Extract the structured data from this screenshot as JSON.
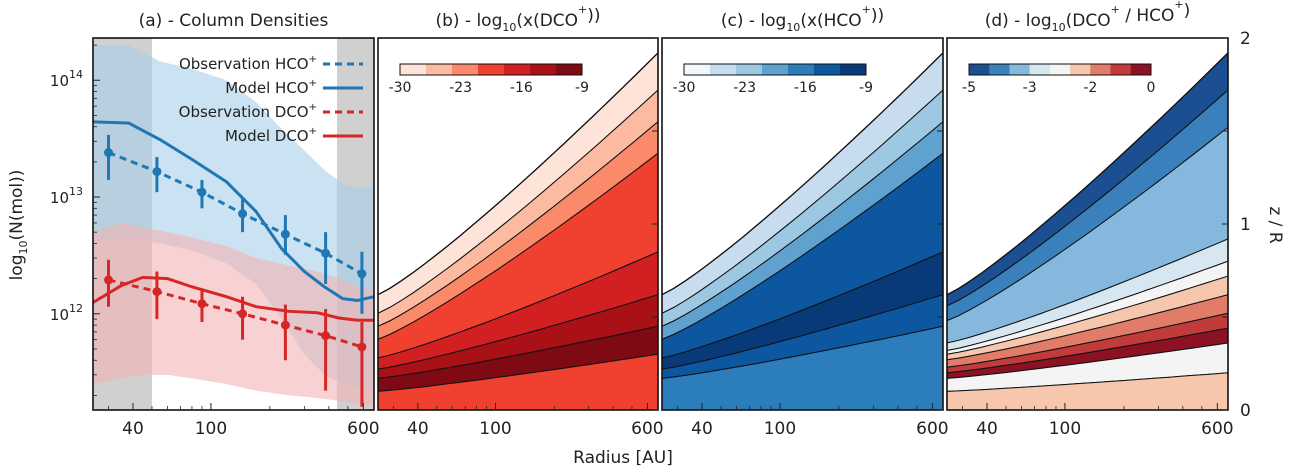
{
  "figure": {
    "xlabel": "Radius [AU]",
    "right_ylabel": "z / R",
    "right_ticks": [
      "0",
      "1",
      "2"
    ]
  },
  "colors": {
    "hco": "#1f77b4",
    "dco": "#d62728",
    "hco_band": "#a6cfe8",
    "dco_band": "#f4b4b4",
    "shade": "#d0d0d0",
    "reds": [
      "#fde3d8",
      "#fcbba1",
      "#fb8a6a",
      "#f0402f",
      "#d21f22",
      "#aa1117",
      "#7f0a13"
    ],
    "blues": [
      "#f2f7fc",
      "#c8dcf0",
      "#9cc8e2",
      "#5fa2d0",
      "#2c7dbb",
      "#0d57a1",
      "#083a7a"
    ],
    "ratio": [
      "#1c4f91",
      "#3a80bd",
      "#85b8dc",
      "#d7e7f2",
      "#f4f4f4",
      "#f6c7ad",
      "#e07c67",
      "#c13b3b",
      "#8b1123"
    ]
  },
  "chart_data": [
    {
      "type": "line",
      "title": "(a) - Column Densities",
      "ylabel": "log10(N(mol))",
      "ylabel_main": "log",
      "ylabel_sub": "10",
      "ylabel_rest": "(N(mol))",
      "xscale": "log",
      "yscale": "log",
      "xlim": [
        25,
        680
      ],
      "ylim": [
        150000000000.0,
        230000000000000.0
      ],
      "xticks": [
        40,
        100,
        600
      ],
      "xtick_labels": [
        "40",
        "100",
        "600"
      ],
      "yticks": [
        1000000000000.0,
        10000000000000.0,
        100000000000000.0
      ],
      "ytick_base": "10",
      "ytick_exps": [
        "12",
        "13",
        "14"
      ],
      "shaded_regions": [
        [
          25,
          50
        ],
        [
          440,
          680
        ]
      ],
      "legend": [
        {
          "base": "Observation HCO",
          "sup": "+",
          "color": "hco",
          "style": "dashed"
        },
        {
          "base": "Model HCO",
          "sup": "+",
          "color": "hco",
          "style": "solid"
        },
        {
          "base": "Observation DCO",
          "sup": "+",
          "color": "dco",
          "style": "dashed"
        },
        {
          "base": "Model DCO",
          "sup": "+",
          "color": "dco",
          "style": "solid"
        }
      ],
      "series": [
        {
          "name": "Model HCO+",
          "kind": "model",
          "color": "hco",
          "x": [
            25,
            38,
            55,
            80,
            120,
            170,
            230,
            300,
            380,
            470,
            560,
            680
          ],
          "y": [
            44000000000000.0,
            43000000000000.0,
            31000000000000.0,
            21000000000000.0,
            13500000000000.0,
            7500000000000.0,
            3600000000000.0,
            2300000000000.0,
            1700000000000.0,
            1350000000000.0,
            1300000000000.0,
            1400000000000.0
          ],
          "band_upper": [
            200000000000000.0,
            200000000000000.0,
            145000000000000.0,
            125000000000000.0,
            100000000000000.0,
            65000000000000.0,
            38000000000000.0,
            25000000000000.0,
            17000000000000.0,
            13000000000000.0,
            12000000000000.0,
            12000000000000.0
          ],
          "band_lower": [
            4000000000000.0,
            4500000000000.0,
            4000000000000.0,
            3500000000000.0,
            2700000000000.0,
            1800000000000.0,
            900000000000.0,
            450000000000.0,
            300000000000.0,
            250000000000.0,
            230000000000.0,
            230000000000.0
          ]
        },
        {
          "name": "Model DCO+",
          "kind": "model",
          "color": "dco",
          "x": [
            25,
            35,
            45,
            60,
            80,
            120,
            170,
            250,
            350,
            450,
            560,
            680
          ],
          "y": [
            1250000000000.0,
            1750000000000.0,
            2050000000000.0,
            2000000000000.0,
            1700000000000.0,
            1400000000000.0,
            1150000000000.0,
            1050000000000.0,
            1020000000000.0,
            920000000000.0,
            880000000000.0,
            880000000000.0
          ],
          "band_upper": [
            5000000000000.0,
            6000000000000.0,
            5500000000000.0,
            5000000000000.0,
            4500000000000.0,
            3800000000000.0,
            3000000000000.0,
            2600000000000.0,
            2300000000000.0,
            2000000000000.0,
            1700000000000.0,
            1600000000000.0
          ],
          "band_lower": [
            250000000000.0,
            280000000000.0,
            300000000000.0,
            300000000000.0,
            280000000000.0,
            250000000000.0,
            220000000000.0,
            200000000000.0,
            190000000000.0,
            180000000000.0,
            170000000000.0,
            160000000000.0
          ]
        },
        {
          "name": "Observation HCO+",
          "kind": "observation",
          "color": "hco",
          "x": [
            30,
            53,
            90,
            145,
            240,
            385,
            590
          ],
          "y": [
            24000000000000.0,
            16500000000000.0,
            11000000000000.0,
            7200000000000.0,
            4800000000000.0,
            3300000000000.0,
            2200000000000.0
          ],
          "yerr_low": [
            14000000000000.0,
            11000000000000.0,
            8000000000000.0,
            5000000000000.0,
            3200000000000.0,
            1800000000000.0,
            1000000000000.0
          ],
          "yerr_high": [
            34000000000000.0,
            22000000000000.0,
            14000000000000.0,
            10000000000000.0,
            7000000000000.0,
            5000000000000.0,
            3400000000000.0
          ]
        },
        {
          "name": "Observation DCO+",
          "kind": "observation",
          "color": "dco",
          "x": [
            30,
            53,
            90,
            145,
            240,
            385,
            590
          ],
          "y": [
            1950000000000.0,
            1550000000000.0,
            1220000000000.0,
            1000000000000.0,
            800000000000.0,
            650000000000.0,
            520000000000.0
          ],
          "yerr_low": [
            1150000000000.0,
            900000000000.0,
            850000000000.0,
            600000000000.0,
            400000000000.0,
            220000000000.0,
            160000000000.0
          ],
          "yerr_high": [
            2900000000000.0,
            2300000000000.0,
            1600000000000.0,
            1400000000000.0,
            1200000000000.0,
            1100000000000.0,
            850000000000.0
          ]
        }
      ]
    },
    {
      "type": "heatmap",
      "title_parts": [
        "(b) - log",
        "10",
        "(x(DCO",
        "+",
        "))"
      ],
      "palette": "reds",
      "colorbar_ticks": [
        "-30",
        "-23",
        "-16",
        "-9"
      ],
      "xscale": "log",
      "xlim": [
        25,
        680
      ],
      "ylim": [
        0,
        2
      ],
      "xticks": [
        40,
        100,
        600
      ],
      "xtick_labels": [
        "40",
        "100",
        "600"
      ],
      "disk_surface_zR": [
        0.62,
        1.92
      ],
      "bands": [
        {
          "level": 0,
          "upper": [
            0.62,
            1.92
          ],
          "lower": [
            0.52,
            1.72
          ]
        },
        {
          "level": 1,
          "upper": [
            0.52,
            1.72
          ],
          "lower": [
            0.45,
            1.55
          ]
        },
        {
          "level": 2,
          "upper": [
            0.45,
            1.55
          ],
          "lower": [
            0.38,
            1.38
          ]
        },
        {
          "level": 3,
          "upper": [
            0.38,
            1.38
          ],
          "lower": [
            0.28,
            0.85
          ]
        },
        {
          "level": 4,
          "upper": [
            0.28,
            0.85
          ],
          "lower": [
            0.22,
            0.62
          ]
        },
        {
          "level": 5,
          "upper": [
            0.22,
            0.62
          ],
          "lower": [
            0.17,
            0.45
          ]
        },
        {
          "level": 6,
          "upper": [
            0.17,
            0.45
          ],
          "lower": [
            0.1,
            0.3
          ]
        },
        {
          "level": 3,
          "upper": [
            0.1,
            0.3
          ],
          "lower": [
            0.0,
            0.0
          ]
        }
      ]
    },
    {
      "type": "heatmap",
      "title_parts": [
        "(c) - log",
        "10",
        "(x(HCO",
        "+",
        "))"
      ],
      "palette": "blues",
      "colorbar_ticks": [
        "-30",
        "-23",
        "-16",
        "-9"
      ],
      "xscale": "log",
      "xlim": [
        25,
        680
      ],
      "ylim": [
        0,
        2
      ],
      "xticks": [
        40,
        100,
        600
      ],
      "xtick_labels": [
        "40",
        "100",
        "600"
      ],
      "disk_surface_zR": [
        0.62,
        1.92
      ],
      "bands": [
        {
          "level": 1,
          "upper": [
            0.62,
            1.92
          ],
          "lower": [
            0.52,
            1.72
          ]
        },
        {
          "level": 2,
          "upper": [
            0.52,
            1.72
          ],
          "lower": [
            0.45,
            1.55
          ]
        },
        {
          "level": 3,
          "upper": [
            0.45,
            1.55
          ],
          "lower": [
            0.38,
            1.38
          ]
        },
        {
          "level": 5,
          "upper": [
            0.38,
            1.38
          ],
          "lower": [
            0.28,
            0.85
          ]
        },
        {
          "level": 6,
          "upper": [
            0.28,
            0.85
          ],
          "lower": [
            0.22,
            0.62
          ]
        },
        {
          "level": 5,
          "upper": [
            0.22,
            0.62
          ],
          "lower": [
            0.17,
            0.45
          ]
        },
        {
          "level": 4,
          "upper": [
            0.17,
            0.45
          ],
          "lower": [
            0.0,
            0.0
          ]
        }
      ]
    },
    {
      "type": "heatmap",
      "title_parts": [
        "(d) - log",
        "10",
        "(DCO",
        "+",
        " / HCO",
        "+",
        ")"
      ],
      "palette": "ratio",
      "colorbar_ticks": [
        "-5",
        "-3",
        "-2",
        "0"
      ],
      "xscale": "log",
      "xlim": [
        25,
        680
      ],
      "ylim": [
        0,
        2
      ],
      "xticks": [
        40,
        100,
        600
      ],
      "xtick_labels": [
        "40",
        "100",
        "600"
      ],
      "disk_surface_zR": [
        0.62,
        1.92
      ],
      "bands": [
        {
          "level": 0,
          "upper": [
            0.62,
            1.92
          ],
          "lower": [
            0.56,
            1.72
          ]
        },
        {
          "level": 1,
          "upper": [
            0.56,
            1.72
          ],
          "lower": [
            0.48,
            1.52
          ]
        },
        {
          "level": 2,
          "upper": [
            0.48,
            1.52
          ],
          "lower": [
            0.36,
            0.92
          ]
        },
        {
          "level": 3,
          "upper": [
            0.36,
            0.92
          ],
          "lower": [
            0.32,
            0.8
          ]
        },
        {
          "level": 4,
          "upper": [
            0.32,
            0.8
          ],
          "lower": [
            0.3,
            0.72
          ]
        },
        {
          "level": 5,
          "upper": [
            0.3,
            0.72
          ],
          "lower": [
            0.27,
            0.62
          ]
        },
        {
          "level": 6,
          "upper": [
            0.27,
            0.62
          ],
          "lower": [
            0.23,
            0.52
          ]
        },
        {
          "level": 7,
          "upper": [
            0.23,
            0.52
          ],
          "lower": [
            0.2,
            0.44
          ]
        },
        {
          "level": 8,
          "upper": [
            0.2,
            0.44
          ],
          "lower": [
            0.17,
            0.36
          ]
        },
        {
          "level": 4,
          "upper": [
            0.17,
            0.36
          ],
          "lower": [
            0.1,
            0.2
          ]
        },
        {
          "level": 5,
          "upper": [
            0.1,
            0.2
          ],
          "lower": [
            0.0,
            0.0
          ]
        }
      ]
    }
  ]
}
